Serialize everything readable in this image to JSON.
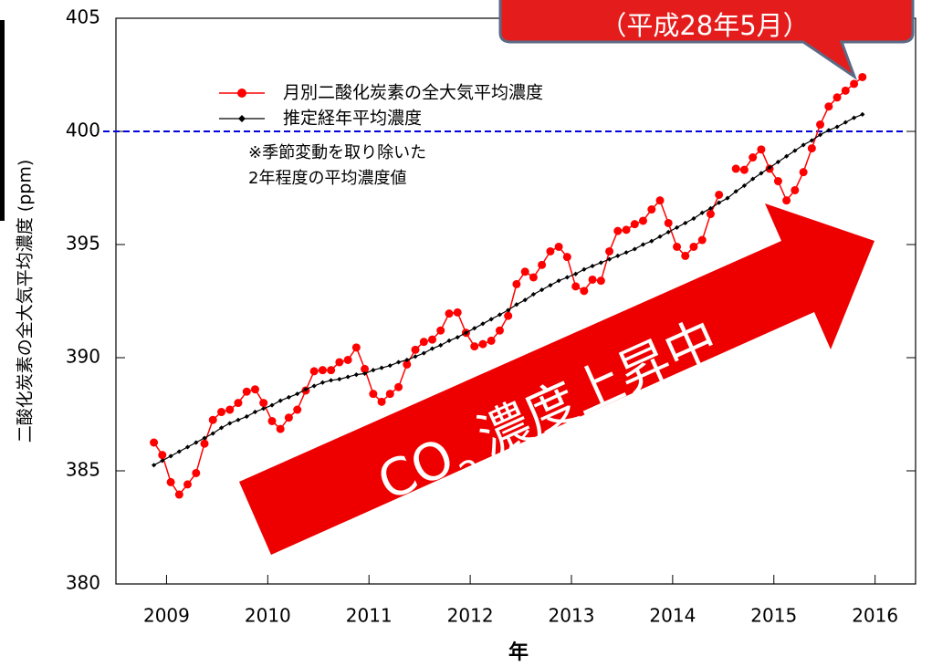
{
  "chart_data": {
    "type": "line",
    "y_label": "二酸化炭素の全大気平均濃度 (ppm)",
    "x_label": "年",
    "xlim": [
      2009.0,
      2016.9
    ],
    "xticks": [
      {
        "value": 2009.5,
        "label": "2009"
      },
      {
        "value": 2010.5,
        "label": "2010"
      },
      {
        "value": 2011.5,
        "label": "2011"
      },
      {
        "value": 2012.5,
        "label": "2012"
      },
      {
        "value": 2013.5,
        "label": "2013"
      },
      {
        "value": 2014.5,
        "label": "2014"
      },
      {
        "value": 2015.5,
        "label": "2015"
      },
      {
        "value": 2016.5,
        "label": "2016"
      }
    ],
    "ylim": [
      380,
      405
    ],
    "yticks": [
      380,
      385,
      390,
      395,
      400,
      405
    ],
    "x": [
      2009.375,
      2009.458,
      2009.542,
      2009.625,
      2009.708,
      2009.792,
      2009.875,
      2009.958,
      2010.042,
      2010.125,
      2010.208,
      2010.292,
      2010.375,
      2010.458,
      2010.542,
      2010.625,
      2010.708,
      2010.792,
      2010.875,
      2010.958,
      2011.042,
      2011.125,
      2011.208,
      2011.292,
      2011.375,
      2011.458,
      2011.542,
      2011.625,
      2011.708,
      2011.792,
      2011.875,
      2011.958,
      2012.042,
      2012.125,
      2012.208,
      2012.292,
      2012.375,
      2012.458,
      2012.542,
      2012.625,
      2012.708,
      2012.792,
      2012.875,
      2012.958,
      2013.042,
      2013.125,
      2013.208,
      2013.292,
      2013.375,
      2013.458,
      2013.542,
      2013.625,
      2013.708,
      2013.792,
      2013.875,
      2013.958,
      2014.042,
      2014.125,
      2014.208,
      2014.292,
      2014.375,
      2014.458,
      2014.542,
      2014.625,
      2014.708,
      2014.792,
      2014.875,
      2014.958,
      2015.042,
      2015.125,
      2015.208,
      2015.292,
      2015.375,
      2015.458,
      2015.542,
      2015.625,
      2015.708,
      2015.792,
      2015.875,
      2015.958,
      2016.042,
      2016.125,
      2016.208,
      2016.292,
      2016.375
    ],
    "series": [
      {
        "name": "月別二酸化炭素の全大気平均濃度",
        "color": "#ff0000",
        "marker": "circle",
        "values": [
          386.25,
          385.7,
          384.5,
          383.95,
          384.4,
          384.9,
          386.2,
          387.25,
          387.6,
          387.7,
          388.0,
          388.5,
          388.6,
          388.0,
          387.2,
          386.85,
          387.35,
          387.7,
          388.55,
          389.4,
          389.45,
          389.45,
          389.8,
          389.9,
          390.45,
          389.5,
          388.4,
          388.05,
          388.4,
          388.7,
          389.7,
          390.35,
          390.7,
          390.8,
          391.2,
          391.95,
          392.0,
          391.1,
          390.5,
          390.6,
          390.75,
          391.2,
          391.85,
          393.25,
          393.8,
          393.55,
          394.1,
          394.7,
          394.9,
          394.45,
          393.15,
          392.95,
          393.45,
          393.4,
          394.7,
          395.6,
          395.65,
          395.9,
          396.05,
          396.55,
          396.95,
          395.95,
          394.9,
          394.5,
          394.9,
          395.2,
          396.35,
          397.2,
          null,
          398.35,
          398.3,
          398.85,
          399.2,
          398.35,
          397.8,
          396.95,
          397.4,
          398.2,
          399.25,
          400.3,
          401.1,
          401.5,
          401.8,
          402.1,
          402.4
        ]
      },
      {
        "name": "推定経年平均濃度",
        "color": "#000000",
        "marker": "diamond",
        "values": [
          385.25,
          385.45,
          385.65,
          385.85,
          386.05,
          386.25,
          386.45,
          386.65,
          386.9,
          387.1,
          387.25,
          387.4,
          387.6,
          387.75,
          387.9,
          388.1,
          388.25,
          388.4,
          388.6,
          388.75,
          388.9,
          389.0,
          389.05,
          389.15,
          389.25,
          389.3,
          389.45,
          389.55,
          389.65,
          389.8,
          389.9,
          390.05,
          390.2,
          390.4,
          390.55,
          390.75,
          390.9,
          391.1,
          391.3,
          391.5,
          391.7,
          391.9,
          392.1,
          392.35,
          392.55,
          392.8,
          393.0,
          393.2,
          393.4,
          393.55,
          393.7,
          393.9,
          394.05,
          394.2,
          394.35,
          394.5,
          394.65,
          394.8,
          395.0,
          395.15,
          395.35,
          395.55,
          395.75,
          395.95,
          396.15,
          396.4,
          396.6,
          396.85,
          397.05,
          397.35,
          397.6,
          397.9,
          398.15,
          398.4,
          398.65,
          398.9,
          399.15,
          399.4,
          399.6,
          399.85,
          400.05,
          400.2,
          400.4,
          400.6,
          400.75
        ]
      }
    ],
    "reference_line": {
      "value": 400,
      "color": "#0000dd"
    },
    "note": [
      "※季節変動を取り除いた",
      "2年程度の平均濃度値"
    ],
    "arrow_text": {
      "main": "CO",
      "subscript": "2",
      "rest": "濃度上昇中"
    },
    "callout": "（平成28年5月）"
  }
}
